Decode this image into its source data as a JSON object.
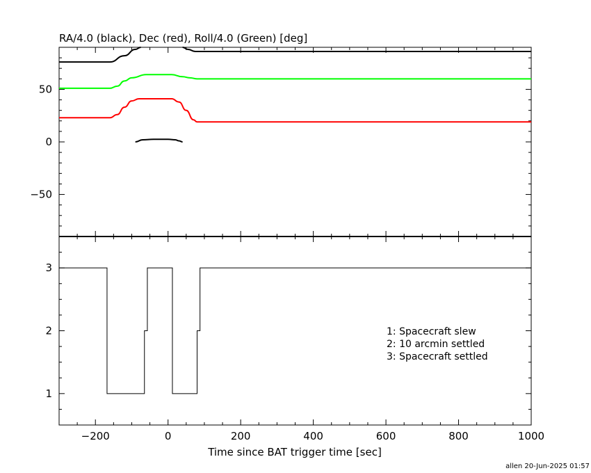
{
  "chart_data": [
    {
      "type": "line",
      "title": "RA/4.0 (black), Dec (red), Roll/4.0 (Green) [deg]",
      "xlim": [
        -300,
        1000
      ],
      "ylim": [
        -90,
        90
      ],
      "yticks": [
        -50,
        0,
        50
      ],
      "ytick_labels": [
        "−50",
        "0",
        "50"
      ],
      "grid": false,
      "series": [
        {
          "name": "RA/4.0",
          "color": "#000000",
          "x": [
            -300,
            -160,
            -120,
            -90,
            -75
          ],
          "y": [
            76,
            76,
            82,
            88,
            90
          ]
        },
        {
          "name": "RA/4.0",
          "color": "#000000",
          "x": [
            -90,
            -70,
            -40,
            0,
            20,
            30,
            40
          ],
          "y": [
            0,
            2,
            2.5,
            2.5,
            2,
            1,
            0
          ]
        },
        {
          "name": "RA/4.0",
          "color": "#000000",
          "x": [
            40,
            55,
            75,
            100,
            200,
            380,
            1000
          ],
          "y": [
            90,
            88,
            86,
            86,
            86,
            86,
            86
          ]
        },
        {
          "name": "Dec",
          "color": "#ff0000",
          "x": [
            -300,
            -160,
            -140,
            -120,
            -100,
            -80,
            -60,
            10,
            30,
            50,
            70,
            80,
            100,
            300,
            1000
          ],
          "y": [
            23,
            23,
            26,
            33,
            39,
            41,
            41,
            41,
            38,
            30,
            21,
            19,
            19,
            19,
            19
          ]
        },
        {
          "name": "Roll/4.0",
          "color": "#00ff00",
          "x": [
            -300,
            -160,
            -140,
            -120,
            -100,
            -60,
            10,
            40,
            60,
            80,
            100,
            300,
            1000
          ],
          "y": [
            51,
            51,
            53,
            58,
            61,
            64,
            64,
            62,
            61,
            60,
            60,
            60,
            60
          ]
        }
      ]
    },
    {
      "type": "line",
      "xlabel": "Time since BAT trigger time [sec]",
      "xlim": [
        -300,
        1000
      ],
      "ylim": [
        0.5,
        3.5
      ],
      "xticks": [
        -200,
        0,
        200,
        400,
        600,
        800,
        1000
      ],
      "xtick_labels": [
        "−200",
        "0",
        "200",
        "400",
        "600",
        "800",
        "1000"
      ],
      "yticks": [
        1,
        2,
        3
      ],
      "ytick_labels": [
        "1",
        "2",
        "3"
      ],
      "series": [
        {
          "color": "#000000",
          "x": [
            -300,
            -168,
            -168,
            -65,
            -65,
            -57,
            -57,
            12,
            12,
            80,
            80,
            88,
            88,
            1000
          ],
          "y": [
            3,
            3,
            1,
            1,
            2,
            2,
            3,
            3,
            1,
            1,
            2,
            2,
            3,
            3
          ],
          "step": true
        }
      ],
      "legend_lines": [
        "1: Spacecraft slew",
        "2: 10 arcmin settled",
        "3: Spacecraft settled"
      ]
    }
  ],
  "footer": "allen 20-Jun-2025 01:57"
}
